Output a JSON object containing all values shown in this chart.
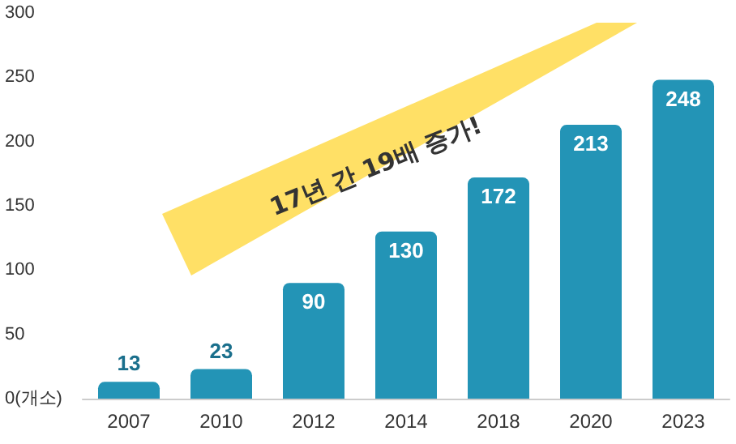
{
  "chart_data": {
    "type": "bar",
    "categories": [
      "2007",
      "2010",
      "2012",
      "2014",
      "2018",
      "2020",
      "2023"
    ],
    "values": [
      13,
      23,
      90,
      130,
      172,
      213,
      248
    ],
    "color": "#2394b6",
    "ylim": [
      0,
      300
    ],
    "yticks": [
      {
        "value": 0,
        "label": "0(개소)"
      },
      50,
      100,
      150,
      200,
      250,
      300
    ],
    "data_labels": true,
    "grid": false,
    "annotations": [
      "17년 간 19배 증가!"
    ]
  }
}
